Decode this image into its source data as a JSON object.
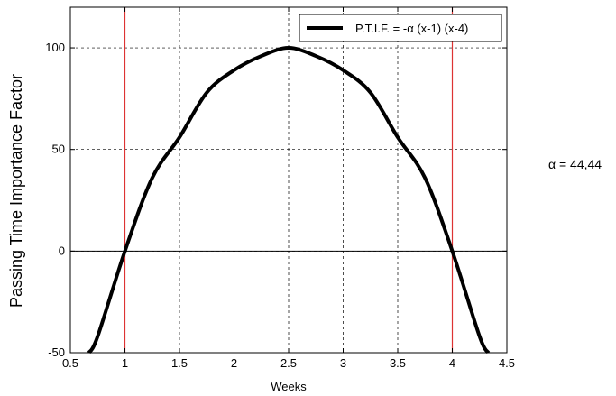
{
  "chart_data": {
    "type": "line",
    "xlabel": "Weeks",
    "ylabel": "Passing Time Importance Factor",
    "xlim": [
      0.5,
      4.5
    ],
    "ylim": [
      -50,
      120
    ],
    "xticks": [
      0.5,
      1,
      1.5,
      2,
      2.5,
      3,
      3.5,
      4,
      4.5
    ],
    "xtick_labels": [
      "0.5",
      "1",
      "1.5",
      "2",
      "2.5",
      "3",
      "3.5",
      "4",
      "4.5"
    ],
    "yticks": [
      -50,
      0,
      50,
      100
    ],
    "ytick_labels": [
      "-50",
      "0",
      "50",
      "100"
    ],
    "grid": true,
    "legend_position": "top-right",
    "series": [
      {
        "name": "P.T.I.F. = -α (x-1) (x-4)",
        "color": "#000000",
        "x": [
          0.67,
          0.75,
          1.0,
          1.25,
          1.5,
          1.75,
          2.0,
          2.25,
          2.5,
          2.75,
          3.0,
          3.25,
          3.5,
          3.75,
          4.0,
          4.25,
          4.33
        ],
        "y": [
          -50,
          -42,
          0,
          36,
          56,
          78,
          89,
          96,
          100,
          96,
          89,
          78,
          56,
          36,
          0,
          -42,
          -50
        ]
      }
    ],
    "reference_lines": [
      {
        "axis": "x",
        "value": 1,
        "color": "#dd3333"
      },
      {
        "axis": "x",
        "value": 4,
        "color": "#dd3333"
      },
      {
        "axis": "y",
        "value": 0,
        "color": "#000000"
      }
    ]
  },
  "side_note": "α = 44,44"
}
